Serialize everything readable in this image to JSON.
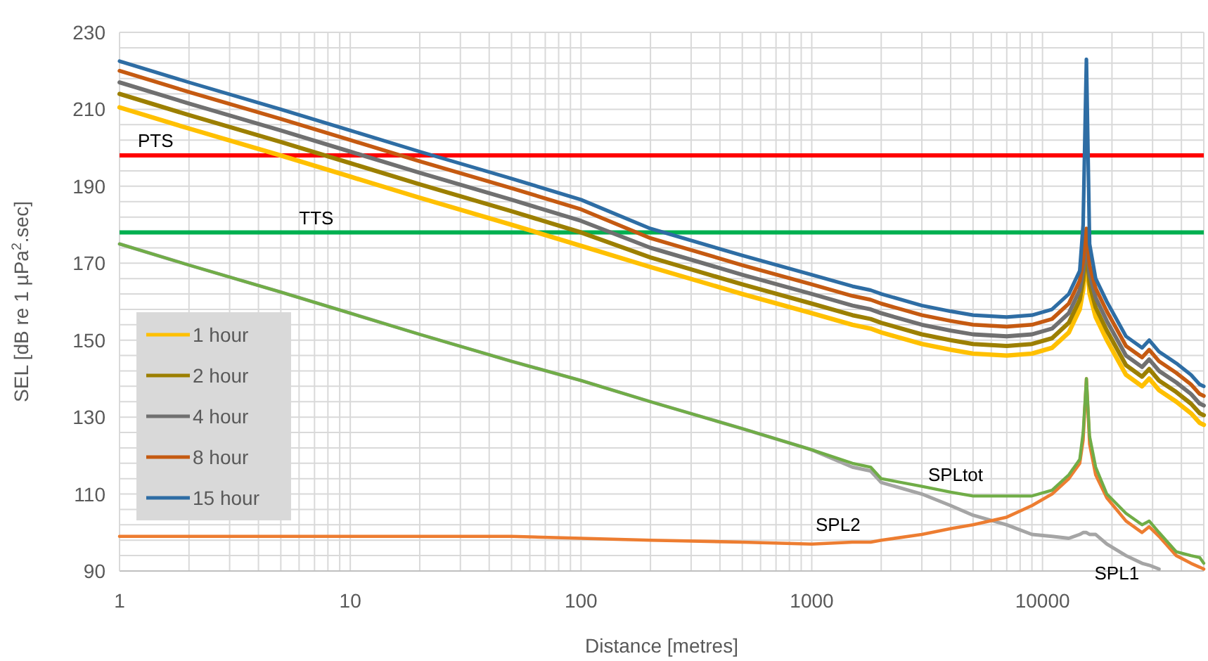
{
  "chart_data": {
    "type": "line",
    "xlabel": "Distance [metres]",
    "ylabel": "SEL [dB re 1 µPa$^{2}$.sec]",
    "log": "x",
    "grid": true,
    "legend": "bottom left",
    "marker": "none",
    "line_style": "solid",
    "xlim": [
      1,
      50000
    ],
    "xticks": [
      1,
      {
        "value": 2,
        "label": null
      },
      {
        "value": 3,
        "label": null
      },
      {
        "value": 4,
        "label": null
      },
      {
        "value": 5,
        "label": null
      },
      {
        "value": 6,
        "label": null
      },
      {
        "value": 7,
        "label": null
      },
      {
        "value": 8,
        "label": null
      },
      {
        "value": 9,
        "label": null
      },
      10,
      {
        "value": 20,
        "label": null
      },
      {
        "value": 30,
        "label": null
      },
      {
        "value": 40,
        "label": null
      },
      {
        "value": 50,
        "label": null
      },
      {
        "value": 60,
        "label": null
      },
      {
        "value": 70,
        "label": null
      },
      {
        "value": 80,
        "label": null
      },
      {
        "value": 90,
        "label": null
      },
      100,
      {
        "value": 200,
        "label": null
      },
      {
        "value": 300,
        "label": null
      },
      {
        "value": 400,
        "label": null
      },
      {
        "value": 500,
        "label": null
      },
      {
        "value": 600,
        "label": null
      },
      {
        "value": 700,
        "label": null
      },
      {
        "value": 800,
        "label": null
      },
      {
        "value": 900,
        "label": null
      },
      1000,
      {
        "value": 2000,
        "label": null
      },
      {
        "value": 3000,
        "label": null
      },
      {
        "value": 4000,
        "label": null
      },
      {
        "value": 5000,
        "label": null
      },
      {
        "value": 6000,
        "label": null
      },
      {
        "value": 7000,
        "label": null
      },
      {
        "value": 8000,
        "label": null
      },
      {
        "value": 9000,
        "label": null
      },
      10000,
      {
        "value": 20000,
        "label": null
      },
      {
        "value": 30000,
        "label": null
      },
      {
        "value": 40000,
        "label": null
      },
      {
        "value": 50000,
        "label": null
      }
    ],
    "ylim": [
      90,
      230
    ],
    "yticks": [
      90,
      {
        "value": 94,
        "label": null
      },
      {
        "value": 98,
        "label": null
      },
      {
        "value": 102,
        "label": null
      },
      {
        "value": 106,
        "label": null
      },
      110,
      {
        "value": 114,
        "label": null
      },
      {
        "value": 118,
        "label": null
      },
      {
        "value": 122,
        "label": null
      },
      {
        "value": 126,
        "label": null
      },
      130,
      {
        "value": 134,
        "label": null
      },
      {
        "value": 138,
        "label": null
      },
      {
        "value": 142,
        "label": null
      },
      {
        "value": 146,
        "label": null
      },
      150,
      {
        "value": 154,
        "label": null
      },
      {
        "value": 158,
        "label": null
      },
      {
        "value": 162,
        "label": null
      },
      {
        "value": 166,
        "label": null
      },
      170,
      {
        "value": 174,
        "label": null
      },
      {
        "value": 178,
        "label": null
      },
      {
        "value": 182,
        "label": null
      },
      {
        "value": 186,
        "label": null
      },
      190,
      {
        "value": 194,
        "label": null
      },
      {
        "value": 198,
        "label": null
      },
      {
        "value": 202,
        "label": null
      },
      {
        "value": 206,
        "label": null
      },
      210,
      {
        "value": 214,
        "label": null
      },
      {
        "value": 218,
        "label": null
      },
      {
        "value": 222,
        "label": null
      },
      {
        "value": 226,
        "label": null
      },
      230
    ],
    "x": [
      1,
      2,
      5,
      10,
      20,
      50,
      100,
      200,
      500,
      1000,
      1500,
      1800,
      2000,
      3000,
      4000,
      5000,
      7000,
      9000,
      11000,
      13000,
      14500,
      15000,
      15500,
      16000,
      17000,
      19000,
      23000,
      27000,
      29000,
      32000,
      38000,
      44000,
      48000,
      50000
    ],
    "series": [
      {
        "name": "1 hour",
        "color": "#ffc000",
        "values": [
          210.5,
          205,
          198,
          192.5,
          187,
          180,
          174.5,
          169,
          162,
          157,
          154,
          153,
          152,
          149,
          147.5,
          146.5,
          146,
          146.5,
          148,
          152,
          158,
          163,
          172,
          162,
          156,
          150,
          141,
          138,
          140,
          137,
          134,
          131,
          128.5,
          128
        ]
      },
      {
        "name": "2 hour",
        "color": "#9c7f00",
        "values": [
          214,
          208.5,
          201.5,
          196,
          190.5,
          183.5,
          178,
          171.5,
          164.5,
          159.5,
          156.5,
          155.5,
          154.5,
          151.5,
          150,
          149,
          148.5,
          149,
          150.5,
          154.5,
          160.5,
          165.5,
          174,
          164.5,
          158.5,
          152.5,
          143.5,
          140.5,
          142.5,
          139.5,
          136.5,
          133.5,
          131,
          130.5
        ]
      },
      {
        "name": "4 hour",
        "color": "#707070",
        "values": [
          217,
          211.5,
          204.5,
          199,
          193.5,
          186.5,
          181,
          174,
          167,
          162,
          159,
          158,
          157,
          154,
          152.5,
          151.5,
          151,
          151.5,
          153,
          157,
          163,
          168,
          176,
          167,
          161,
          155,
          146,
          143,
          145,
          142,
          139,
          136,
          133.5,
          133
        ]
      },
      {
        "name": "8 hour",
        "color": "#c55a11",
        "values": [
          220,
          214.5,
          207.5,
          202,
          196.5,
          189.5,
          184,
          176.5,
          169.5,
          164.5,
          161.5,
          160.5,
          159.5,
          156.5,
          155,
          154,
          153.5,
          154,
          155.5,
          159.5,
          165.5,
          170.5,
          179,
          169.5,
          163.5,
          157.5,
          148.5,
          145.5,
          147.5,
          144.5,
          141.5,
          138.5,
          136,
          135.5
        ]
      },
      {
        "name": "15 hour",
        "color": "#2e6da4",
        "values": [
          222.5,
          217,
          210,
          204.5,
          199,
          192,
          186.5,
          179,
          172,
          167,
          164,
          163,
          162,
          159,
          157.5,
          156.5,
          156,
          156.5,
          158,
          162,
          168,
          180,
          223,
          175,
          166,
          160,
          151,
          148,
          150,
          147,
          144,
          141,
          138.5,
          138
        ]
      },
      {
        "name": "SPL1",
        "color": "#a5a5a5",
        "values": [
          175,
          169.5,
          162.5,
          157,
          151.5,
          144.5,
          139.5,
          134,
          127,
          121.5,
          117,
          116,
          113,
          110,
          107,
          104.5,
          102,
          99.5,
          99,
          98.5,
          99.5,
          100,
          100,
          99.5,
          99.5,
          97,
          94,
          92,
          91.5,
          90.5,
          null,
          null,
          null,
          null
        ]
      },
      {
        "name": "SPL2",
        "color": "#ed7d31",
        "values": [
          99,
          99,
          99,
          99,
          99,
          99,
          98.5,
          98,
          97.5,
          97,
          97.5,
          97.5,
          98,
          99.5,
          101,
          102,
          104,
          107,
          110,
          114,
          118,
          124,
          140,
          123,
          115,
          109,
          103,
          100,
          101.5,
          99,
          94,
          92,
          91,
          90.5
        ]
      },
      {
        "name": "SPLtot",
        "color": "#70ad47",
        "values": [
          175,
          169.5,
          162.5,
          157,
          151.5,
          144.5,
          139.5,
          134,
          127,
          121.5,
          118,
          117,
          114,
          112,
          110.5,
          109.5,
          109.5,
          109.5,
          111,
          115,
          119,
          126,
          140,
          125,
          117,
          110,
          105,
          102,
          103,
          100,
          95,
          94,
          93.5,
          92
        ]
      }
    ],
    "ref_lines": [
      {
        "axis": "y",
        "value": 198,
        "label": "PTS",
        "color": "#ff0000"
      },
      {
        "axis": "y",
        "value": 178,
        "label": "TTS",
        "color": "#00b050"
      }
    ]
  }
}
